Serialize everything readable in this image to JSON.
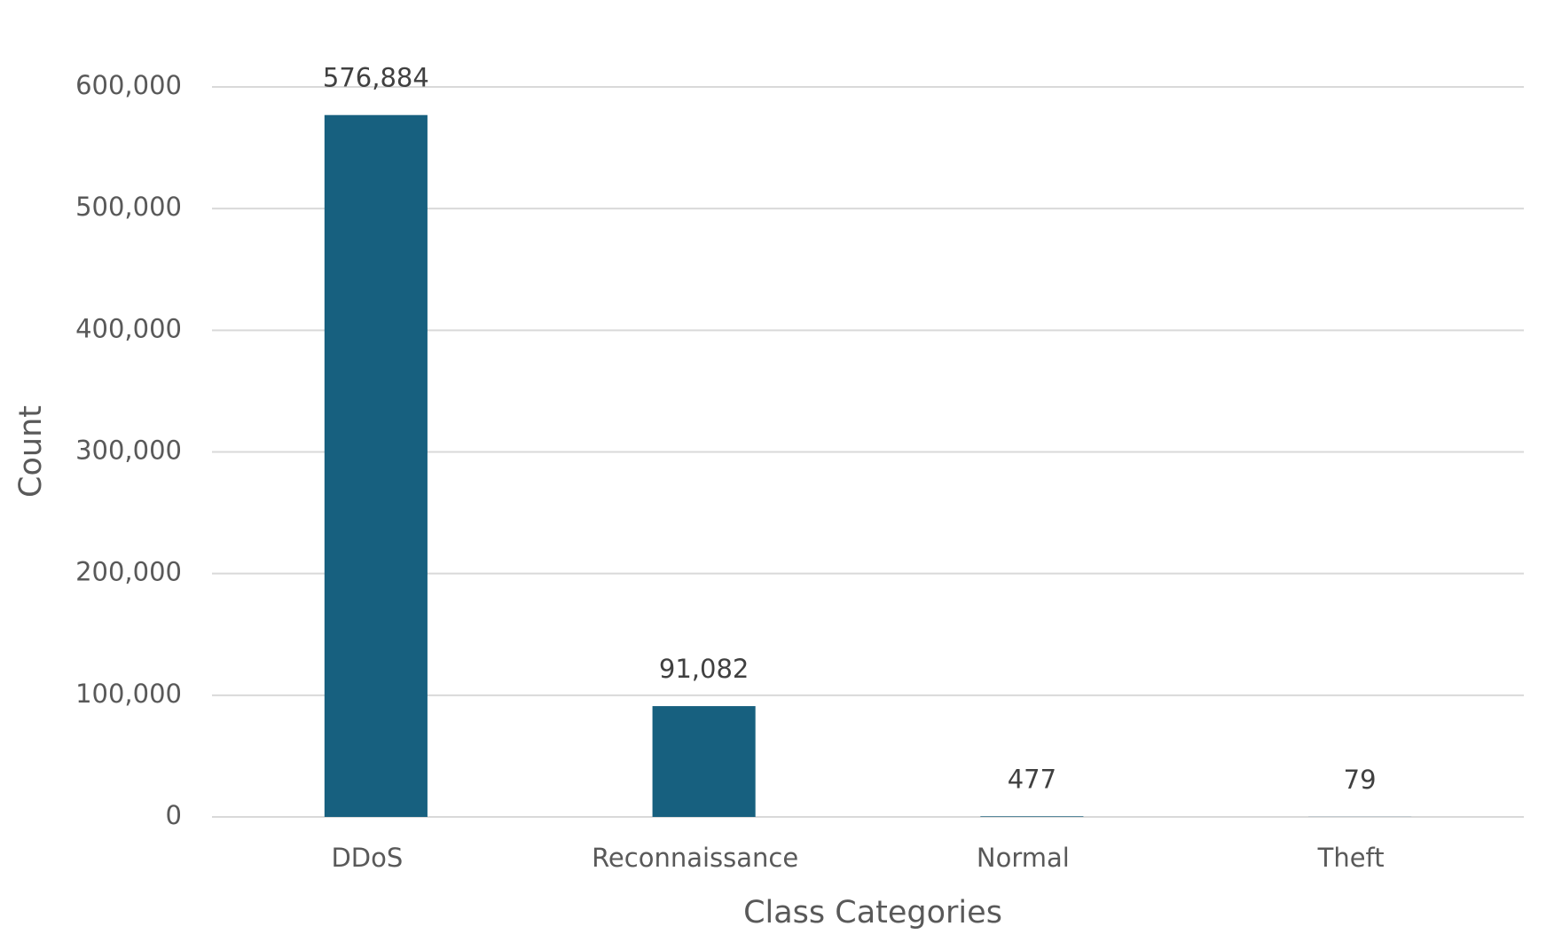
{
  "chart_data": {
    "type": "bar",
    "x_label": "Class Categories",
    "y_label": "Count",
    "categories": [
      "DDoS",
      "Reconnaissance",
      "Normal",
      "Theft"
    ],
    "values": [
      576884,
      91082,
      477,
      79
    ],
    "value_labels": [
      "576,884",
      "91,082",
      "477",
      "79"
    ],
    "color": "#17607f",
    "ylim": [
      0,
      600000
    ],
    "yticks": [
      0,
      {
        "value": 100000,
        "label": "100,000"
      },
      {
        "value": 200000,
        "label": "200,000"
      },
      {
        "value": 300000,
        "label": "300,000"
      },
      {
        "value": 400000,
        "label": "400,000"
      },
      {
        "value": 500000,
        "label": "500,000"
      },
      {
        "value": 600000,
        "label": "600,000"
      }
    ],
    "grid": true
  }
}
